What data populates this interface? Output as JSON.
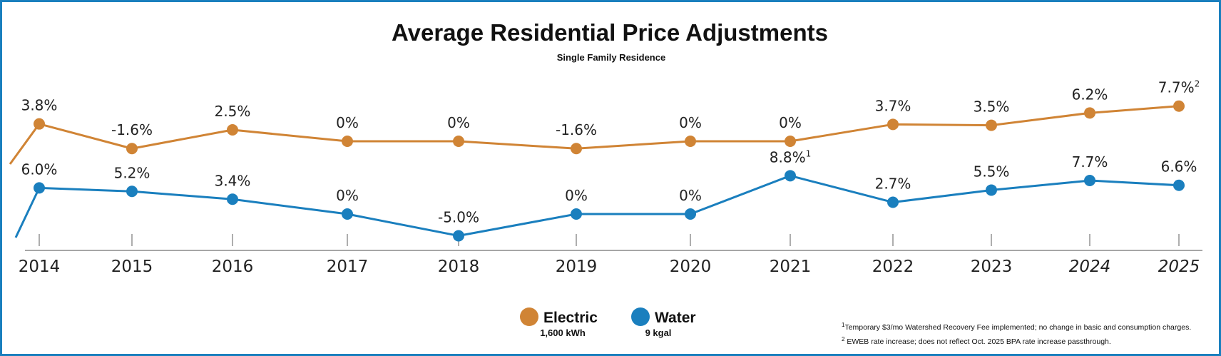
{
  "chart_data": {
    "type": "line",
    "title": "Average Residential Price Adjustments",
    "subtitle": "Single Family Residence",
    "categories": [
      "2014",
      "2015",
      "2016",
      "2017",
      "2018",
      "2019",
      "2020",
      "2021",
      "2022",
      "2023",
      "2024",
      "2025"
    ],
    "italic_categories": [
      "2024",
      "2025"
    ],
    "series": [
      {
        "name": "Electric",
        "unit": "1,600 kWh",
        "color": "#d08435",
        "values": [
          3.8,
          -1.6,
          2.5,
          0,
          0,
          -1.6,
          0,
          0,
          3.7,
          3.5,
          6.2,
          7.7
        ],
        "labels": [
          "3.8%",
          "-1.6%",
          "2.5%",
          "0%",
          "0%",
          "-1.6%",
          "0%",
          "0%",
          "3.7%",
          "3.5%",
          "6.2%",
          "7.7%"
        ],
        "label_superscripts": [
          "",
          "",
          "",
          "",
          "",
          "",
          "",
          "",
          "",
          "",
          "",
          "2"
        ]
      },
      {
        "name": "Water",
        "unit": "9 kgal",
        "color": "#1a7fbe",
        "values": [
          6.0,
          5.2,
          3.4,
          0,
          -5.0,
          0,
          0,
          8.8,
          2.7,
          5.5,
          7.7,
          6.6
        ],
        "labels": [
          "6.0%",
          "5.2%",
          "3.4%",
          "0%",
          "-5.0%",
          "0%",
          "0%",
          "8.8%",
          "2.7%",
          "5.5%",
          "7.7%",
          "6.6%"
        ],
        "label_superscripts": [
          "",
          "",
          "",
          "",
          "",
          "",
          "",
          "1",
          "",
          "",
          "",
          ""
        ]
      }
    ],
    "xlabel": "",
    "ylabel": ""
  },
  "footnotes": [
    {
      "marker": "1",
      "text": "Temporary $3/mo Watershed Recovery Fee implemented; no change in basic and consumption charges."
    },
    {
      "marker": "2",
      "text": " EWEB rate increase; does not reflect Oct. 2025 BPA rate increase passthrough."
    }
  ],
  "border_color": "#1a7fbe"
}
